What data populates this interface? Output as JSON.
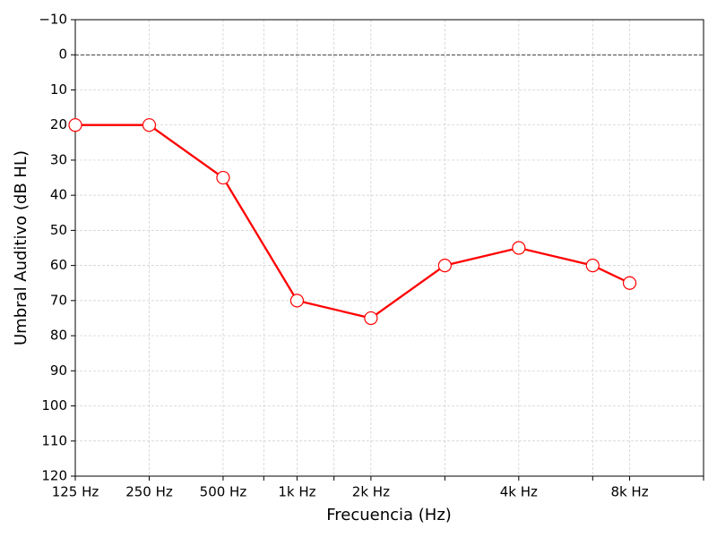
{
  "chart_data": {
    "type": "line",
    "x_label": "Frecuencia (Hz)",
    "y_label": "Umbral Auditivo (dB HL)",
    "x": [
      0,
      1,
      2,
      3,
      4,
      5,
      6,
      7,
      7.5
    ],
    "series": [
      {
        "color": "#ff0000",
        "marker_fill": "#ffffff",
        "values": [
          20,
          20,
          35,
          70,
          75,
          60,
          55,
          60,
          65
        ]
      }
    ],
    "xlim": [
      0,
      8.5
    ],
    "xticks": [
      {
        "value": 0,
        "label": "125 Hz"
      },
      {
        "value": 1,
        "label": "250 Hz"
      },
      {
        "value": 2,
        "label": "500 Hz"
      },
      {
        "value": 2.55,
        "label": null
      },
      {
        "value": 3,
        "label": "1k Hz"
      },
      {
        "value": 3.5,
        "label": null
      },
      {
        "value": 4,
        "label": "2k Hz"
      },
      {
        "value": 5,
        "label": null
      },
      {
        "value": 6,
        "label": "4k Hz"
      },
      {
        "value": 7,
        "label": null
      },
      {
        "value": 7.5,
        "label": "8k Hz"
      },
      {
        "value": 8.5,
        "label": null
      }
    ],
    "ylim": [
      -10,
      120
    ],
    "y_inverted": true,
    "yticks": [
      {
        "value": -10,
        "label": "−10"
      },
      0,
      10,
      20,
      30,
      40,
      50,
      60,
      70,
      80,
      90,
      100,
      110,
      120
    ],
    "hline": 0,
    "grid": true
  }
}
